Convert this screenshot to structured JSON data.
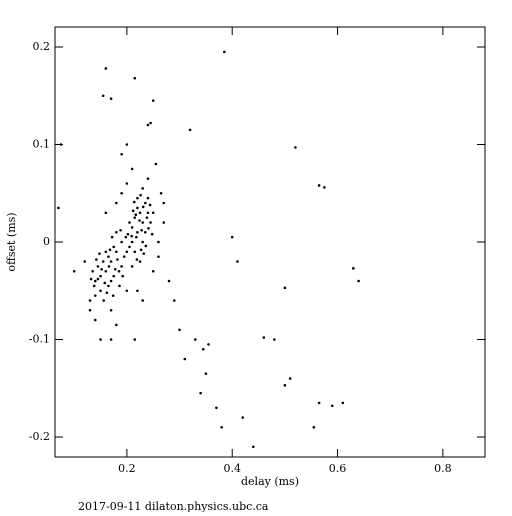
{
  "chart_data": {
    "type": "scatter",
    "x_label": "delay (ms)",
    "y_label": "offset (ms)",
    "footer": "2017-09-11 dilaton.physics.ubc.ca",
    "xlim": [
      0.0635,
      0.88
    ],
    "ylim": [
      -0.2205,
      0.2205
    ],
    "xticks": [
      0.2,
      0.4,
      0.6,
      0.8
    ],
    "yticks": [
      -0.2,
      -0.1,
      0,
      0.1,
      0.2
    ],
    "color": "#000000",
    "x": [
      0.22,
      0.23,
      0.21,
      0.225,
      0.235,
      0.215,
      0.24,
      0.205,
      0.23,
      0.22,
      0.245,
      0.21,
      0.225,
      0.235,
      0.2,
      0.215,
      0.24,
      0.23,
      0.22,
      0.25,
      0.205,
      0.21,
      0.228,
      0.218,
      0.238,
      0.212,
      0.226,
      0.232,
      0.248,
      0.202,
      0.219,
      0.244,
      0.214,
      0.236,
      0.224,
      0.209,
      0.231,
      0.241,
      0.217,
      0.227,
      0.17,
      0.16,
      0.18,
      0.15,
      0.14,
      0.19,
      0.165,
      0.175,
      0.155,
      0.185,
      0.145,
      0.16,
      0.195,
      0.17,
      0.135,
      0.18,
      0.15,
      0.165,
      0.19,
      0.14,
      0.175,
      0.158,
      0.168,
      0.182,
      0.148,
      0.138,
      0.172,
      0.162,
      0.188,
      0.152,
      0.178,
      0.145,
      0.198,
      0.192,
      0.132,
      0.166,
      0.156,
      0.186,
      0.174,
      0.142,
      0.2,
      0.13,
      0.25,
      0.26,
      0.18,
      0.12,
      0.24,
      0.2,
      0.17,
      0.22,
      0.19,
      0.27,
      0.16,
      0.23,
      0.14,
      0.21,
      0.18,
      0.26,
      0.075,
      0.07,
      0.16,
      0.155,
      0.17,
      0.215,
      0.25,
      0.24,
      0.245,
      0.385,
      0.32,
      0.52,
      0.565,
      0.575,
      0.4,
      0.41,
      0.5,
      0.63,
      0.64,
      0.46,
      0.48,
      0.51,
      0.5,
      0.345,
      0.355,
      0.35,
      0.34,
      0.37,
      0.38,
      0.42,
      0.44,
      0.565,
      0.59,
      0.61,
      0.555,
      0.31,
      0.33,
      0.29,
      0.3,
      0.28,
      0.27,
      0.265,
      0.255,
      0.19,
      0.2,
      0.13,
      0.15,
      0.17,
      0.215,
      0.1
    ],
    "y": [
      0.01,
      0.02,
      0.0,
      0.03,
      0.04,
      -0.01,
      0.03,
      -0.005,
      0.0,
      0.045,
      0.02,
      0.015,
      -0.02,
      0.01,
      -0.01,
      0.025,
      0.045,
      0.055,
      0.035,
      0.03,
      0.02,
      -0.025,
      0.012,
      0.005,
      0.025,
      0.032,
      0.048,
      -0.012,
      0.008,
      0.008,
      -0.018,
      0.038,
      0.041,
      -0.004,
      0.022,
      0.006,
      0.036,
      0.014,
      0.028,
      -0.008,
      -0.02,
      -0.03,
      -0.01,
      -0.035,
      -0.04,
      0.0,
      -0.045,
      -0.005,
      -0.02,
      -0.03,
      -0.025,
      -0.01,
      -0.015,
      -0.04,
      -0.03,
      0.01,
      -0.05,
      -0.015,
      -0.025,
      -0.055,
      -0.035,
      -0.042,
      -0.008,
      -0.018,
      -0.012,
      -0.045,
      0.005,
      -0.052,
      0.012,
      -0.028,
      -0.028,
      -0.038,
      0.005,
      -0.035,
      -0.038,
      -0.025,
      -0.06,
      -0.045,
      -0.055,
      -0.018,
      0.06,
      -0.07,
      -0.03,
      0.0,
      0.04,
      -0.02,
      0.065,
      -0.05,
      -0.07,
      -0.05,
      0.05,
      0.04,
      0.03,
      -0.06,
      -0.08,
      0.075,
      -0.085,
      -0.015,
      0.1,
      0.035,
      0.178,
      0.15,
      0.147,
      0.168,
      0.145,
      0.12,
      0.122,
      0.195,
      0.115,
      0.097,
      0.058,
      0.056,
      0.005,
      -0.02,
      -0.047,
      -0.027,
      -0.04,
      -0.098,
      -0.1,
      -0.14,
      -0.147,
      -0.11,
      -0.105,
      -0.135,
      -0.155,
      -0.17,
      -0.19,
      -0.18,
      -0.21,
      -0.165,
      -0.168,
      -0.165,
      -0.19,
      -0.12,
      -0.1,
      -0.06,
      -0.09,
      -0.04,
      0.02,
      0.05,
      0.08,
      0.09,
      0.1,
      -0.06,
      -0.1,
      -0.1,
      -0.1,
      -0.03
    ]
  }
}
